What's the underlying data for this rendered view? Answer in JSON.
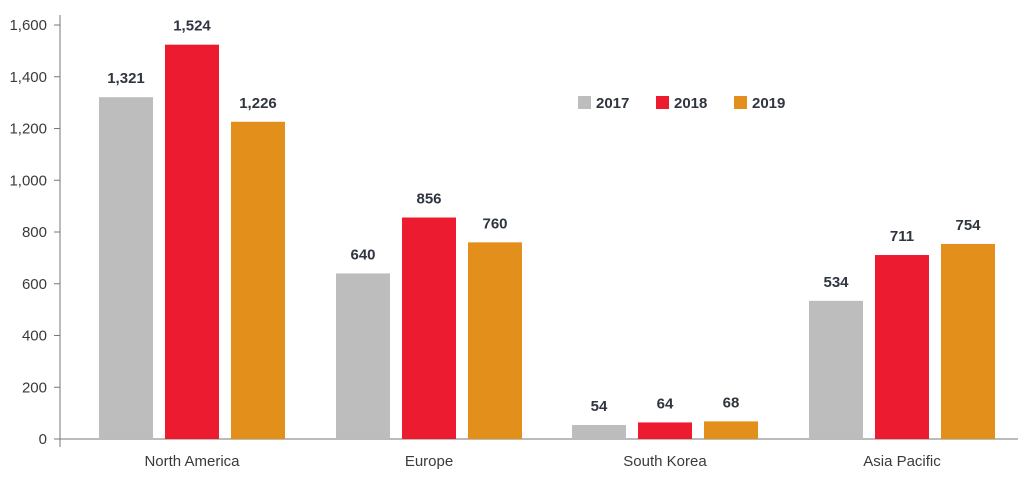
{
  "chart_data": {
    "type": "bar",
    "title": "",
    "xlabel": "",
    "ylabel": "",
    "categories": [
      "North America",
      "Europe",
      "South Korea",
      "Asia Pacific"
    ],
    "series": [
      {
        "name": "2017",
        "color": "#bdbdbe",
        "values": [
          1321,
          640,
          54,
          534
        ],
        "labels": [
          "1,321",
          "640",
          "54",
          "534"
        ]
      },
      {
        "name": "2018",
        "color": "#ec1b30",
        "values": [
          1524,
          856,
          64,
          711
        ],
        "labels": [
          "1,524",
          "856",
          "64",
          "711"
        ]
      },
      {
        "name": "2019",
        "color": "#e28f1c",
        "values": [
          1226,
          760,
          68,
          754
        ],
        "labels": [
          "1,226",
          "760",
          "68",
          "754"
        ]
      }
    ],
    "ylim": [
      0,
      1600
    ],
    "yticks": [
      0,
      200,
      400,
      600,
      800,
      1000,
      1200,
      1400,
      1600
    ],
    "ytick_labels": [
      "0",
      "200",
      "400",
      "600",
      "800",
      "1,000",
      "1,200",
      "1,400",
      "1,600"
    ],
    "grid": false,
    "legend_position": "top-right"
  }
}
